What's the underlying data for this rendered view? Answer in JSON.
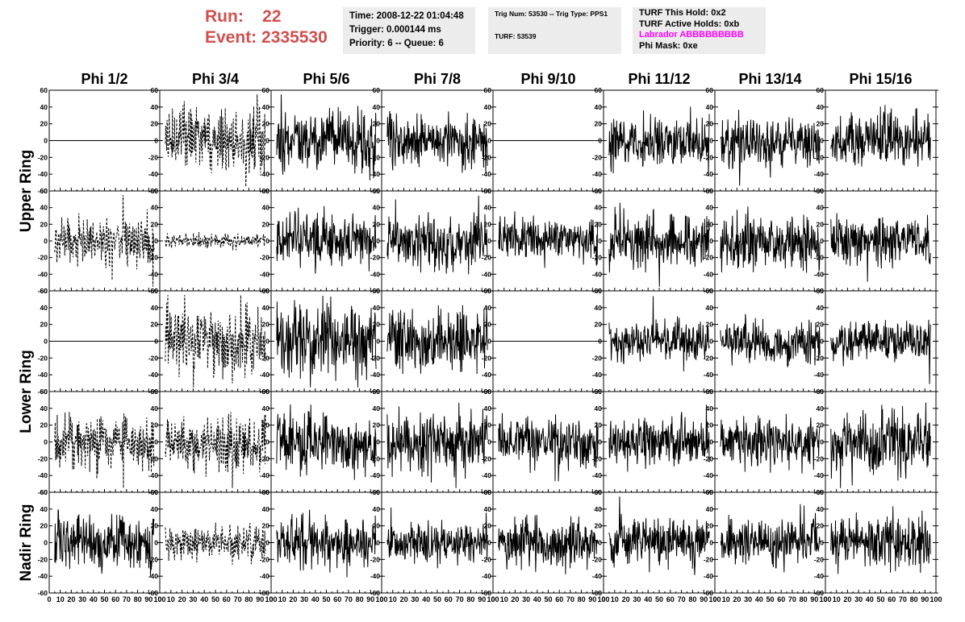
{
  "header": {
    "run_label": "Run:",
    "run_value": "22",
    "event_label": "Event:",
    "event_value": "2335530",
    "time_line": "Time: 2008-12-22 01:04:48",
    "trigger_line": "Trigger: 0.000144 ms",
    "priority_line": "Priority: 6 -- Queue: 6",
    "trig_line": "Trig Num: 53530 -- Trig Type: PPS1",
    "turf_line": "TURF: 53539",
    "turf_hold": "TURF This Hold: 0x2",
    "turf_active": "TURF Active Holds: 0xb",
    "labrador": "Labrador ABBBBBBBBB",
    "phi_mask": "Phi Mask: 0xe",
    "colors": {
      "run_event": "#d0504e",
      "labrador": "#ff00ff",
      "panel_bg": "#ececec"
    }
  },
  "chart_data": {
    "type": "line",
    "column_titles": [
      "Phi 1/2",
      "Phi 3/4",
      "Phi 5/6",
      "Phi 7/8",
      "Phi 9/10",
      "Phi 11/12",
      "Phi 13/14",
      "Phi 15/16"
    ],
    "ring_labels": [
      "Upper Ring",
      "Lower Ring",
      "Nadir Ring"
    ],
    "rows": 5,
    "y_ticks": [
      -60,
      -40,
      -20,
      0,
      20,
      40,
      60
    ],
    "ylim": [
      -60,
      60
    ],
    "x_ticks": [
      0,
      10,
      20,
      30,
      40,
      50,
      60,
      70,
      80,
      90,
      100
    ],
    "xlim": [
      0,
      100
    ],
    "grid": false,
    "waveforms": {
      "description": "channel waveforms, amplitude vs sample",
      "cells": [
        [
          "flat",
          "dashed:18",
          "solid:18",
          "solid:15",
          "flat",
          "solid:15",
          "solid:15",
          "solid:15"
        ],
        [
          "dashed:14",
          "dashed:4",
          "solid:15",
          "solid:15",
          "solid:13",
          "solid:15",
          "solid:15",
          "solid:14"
        ],
        [
          "flat",
          "dashed:20",
          "solid:20",
          "solid:18",
          "flat",
          "solid:12",
          "solid:12",
          "solid:12"
        ],
        [
          "dashed:16",
          "dashed:16",
          "solid:18",
          "solid:18",
          "solid:15",
          "solid:14",
          "solid:14",
          "solid:18"
        ],
        [
          "solid:16",
          "dashed:10",
          "solid:14",
          "solid:11",
          "solid:14",
          "solid:14",
          "solid:14",
          "solid:15"
        ]
      ]
    }
  }
}
